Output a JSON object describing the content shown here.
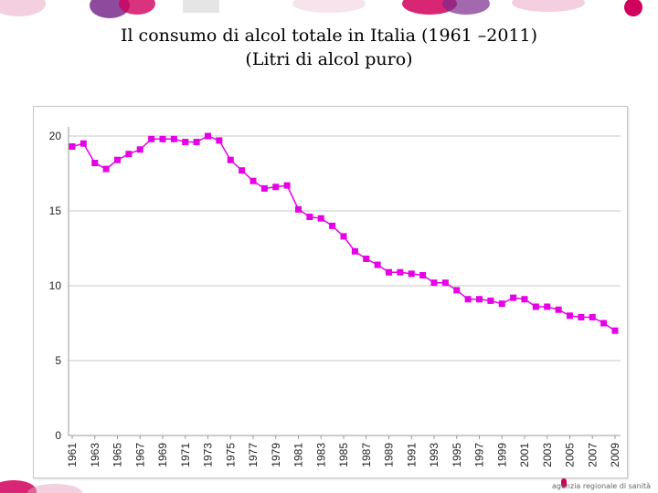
{
  "slide": {
    "title_line1": "Il consumo di alcol totale in Italia (1961 –2011)",
    "title_line2": "(Litri di alcol puro)",
    "footer_text": "agenzia regionale di sanità",
    "accent_color": "#e600e6",
    "brand_colors": [
      "#d1005c",
      "#7a2a8c",
      "#e8a0c0"
    ]
  },
  "chart_data": {
    "type": "line",
    "title": "",
    "xlabel": "",
    "ylabel": "",
    "x": [
      1961,
      1962,
      1963,
      1964,
      1965,
      1966,
      1967,
      1968,
      1969,
      1970,
      1971,
      1972,
      1973,
      1974,
      1975,
      1976,
      1977,
      1978,
      1979,
      1980,
      1981,
      1982,
      1983,
      1984,
      1985,
      1986,
      1987,
      1988,
      1989,
      1990,
      1991,
      1992,
      1993,
      1994,
      1995,
      1996,
      1997,
      1998,
      1999,
      2000,
      2001,
      2002,
      2003,
      2004,
      2005,
      2006,
      2007,
      2008,
      2009
    ],
    "x_tick_labels": [
      "1961",
      "1963",
      "1965",
      "1967",
      "1969",
      "1971",
      "1973",
      "1975",
      "1977",
      "1979",
      "1981",
      "1983",
      "1985",
      "1987",
      "1989",
      "1991",
      "1993",
      "1995",
      "1997",
      "1999",
      "2001",
      "2003",
      "2005",
      "2007",
      "2009"
    ],
    "y_ticks": [
      "0",
      "5",
      "10",
      "15",
      "20"
    ],
    "ylim": [
      0,
      20
    ],
    "grid": true,
    "legend": "none",
    "series": [
      {
        "color": "#e600e6",
        "marker": "square",
        "values": [
          19.3,
          19.5,
          18.2,
          17.8,
          18.4,
          18.8,
          19.1,
          19.8,
          19.8,
          19.8,
          19.6,
          19.6,
          20.0,
          19.7,
          18.4,
          17.7,
          17.0,
          16.5,
          16.6,
          16.7,
          15.1,
          14.6,
          14.5,
          14.0,
          13.3,
          12.3,
          11.8,
          11.4,
          10.9,
          10.9,
          10.8,
          10.7,
          10.2,
          10.2,
          9.7,
          9.1,
          9.1,
          9.0,
          8.8,
          9.2,
          9.1,
          8.6,
          8.6,
          8.4,
          8.0,
          7.9,
          7.9,
          7.5,
          7.0
        ]
      }
    ]
  }
}
